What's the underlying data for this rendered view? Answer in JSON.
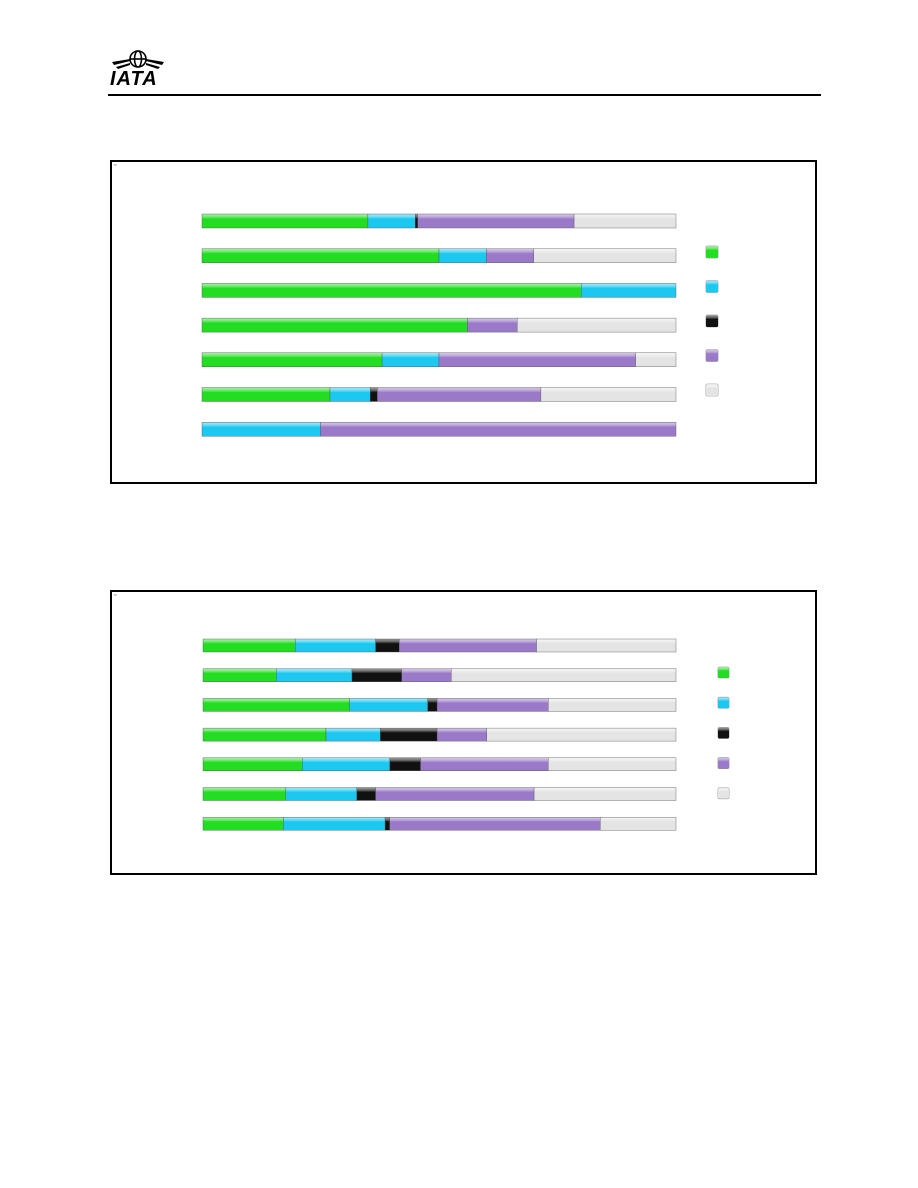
{
  "header": {
    "logo_text": "IATA"
  },
  "colors": {
    "green": "#22dd22",
    "cyan": "#1cc8f0",
    "black": "#111111",
    "purple": "#9a7ac8",
    "light_gray": "#e4e4e4"
  },
  "chart_data": [
    {
      "type": "bar",
      "orientation": "horizontal",
      "stacked": "percent",
      "title": "",
      "categories": [
        "",
        "",
        "",
        "",
        "",
        "",
        ""
      ],
      "series": [
        {
          "color": "#22dd22",
          "values": [
            35,
            50,
            80,
            56,
            38,
            27,
            0
          ]
        },
        {
          "color": "#1cc8f0",
          "values": [
            10,
            10,
            20,
            0,
            12,
            8.5,
            25
          ]
        },
        {
          "color": "#111111",
          "values": [
            0.5,
            0,
            0,
            0,
            0,
            1.5,
            0
          ]
        },
        {
          "color": "#9a7ac8",
          "values": [
            33,
            10,
            0,
            10.5,
            41.5,
            34.5,
            75
          ]
        },
        {
          "color": "#e4e4e4",
          "values": [
            21.5,
            30,
            0,
            33.5,
            8.5,
            28.5,
            0
          ]
        }
      ],
      "legend_position": "right",
      "grid": false,
      "xlim": [
        0,
        100
      ]
    },
    {
      "type": "bar",
      "orientation": "horizontal",
      "stacked": "percent",
      "title": "",
      "categories": [
        "",
        "",
        "",
        "",
        "",
        "",
        ""
      ],
      "series": [
        {
          "color": "#22dd22",
          "values": [
            19.5,
            15.5,
            31,
            26,
            21,
            17.5,
            17
          ]
        },
        {
          "color": "#1cc8f0",
          "values": [
            17,
            16,
            16.5,
            11.5,
            18.5,
            15,
            21.5
          ]
        },
        {
          "color": "#111111",
          "values": [
            5,
            10.5,
            2,
            12,
            6.5,
            4,
            1
          ]
        },
        {
          "color": "#9a7ac8",
          "values": [
            29,
            10.5,
            23.5,
            10.5,
            27,
            33.5,
            44.5
          ]
        },
        {
          "color": "#e4e4e4",
          "values": [
            29.5,
            47.5,
            27,
            40,
            27,
            30,
            16
          ]
        }
      ],
      "legend_position": "right",
      "grid": false,
      "xlim": [
        0,
        100
      ]
    }
  ]
}
